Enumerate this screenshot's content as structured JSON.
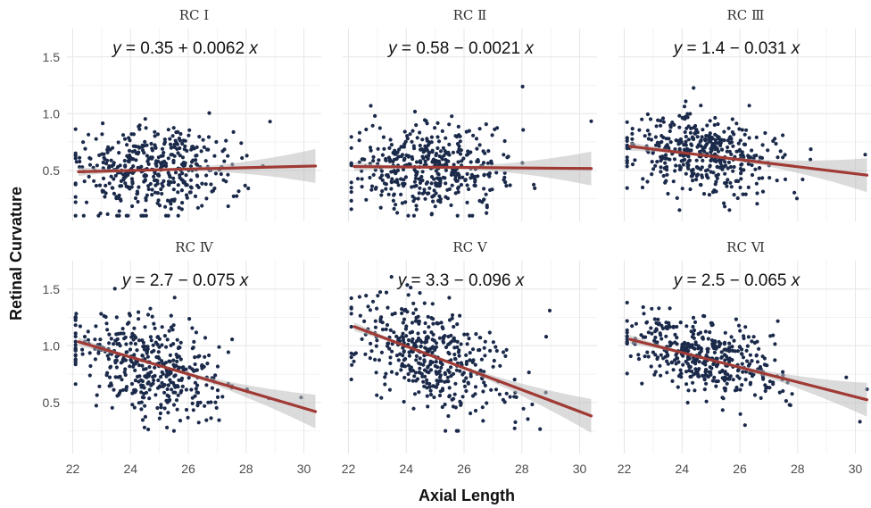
{
  "chart_data": {
    "type": "scatter",
    "xlabel": "Axial Length",
    "ylabel": "Retinal Curvature",
    "xlim": [
      21.8,
      30.6
    ],
    "ylim": [
      0.05,
      1.75
    ],
    "x_ticks": [
      22,
      24,
      26,
      28,
      30
    ],
    "y_ticks": [
      0.5,
      1.0,
      1.5
    ],
    "x_tick_labels": [
      "22",
      "24",
      "26",
      "28",
      "30"
    ],
    "y_tick_labels": [
      "0.5",
      "1.0",
      "1.5"
    ],
    "grid": true,
    "layout": "2x3 facets",
    "point_color": "#1b2a4a",
    "line_color": "#a03a35",
    "band_color": "#bdbdbd",
    "panels": [
      {
        "name": "RC Ⅰ",
        "equation": "y = 0.35 + 0.0062 x",
        "intercept": 0.35,
        "slope": 0.0062,
        "point_cloud": {
          "center_x": 24.8,
          "sd_x": 1.25,
          "center_y": 0.5,
          "sd_y": 0.2,
          "corr": 0.0,
          "y_range": [
            0.1,
            1.42
          ]
        }
      },
      {
        "name": "RC Ⅱ",
        "equation": "y = 0.58 − 0.0021 x",
        "intercept": 0.58,
        "slope": -0.0021,
        "point_cloud": {
          "center_x": 24.8,
          "sd_x": 1.25,
          "center_y": 0.53,
          "sd_y": 0.19,
          "corr": 0.0,
          "y_range": [
            0.1,
            1.3
          ]
        }
      },
      {
        "name": "RC Ⅲ",
        "equation": "y = 1.4 − 0.031 x",
        "intercept": 1.4,
        "slope": -0.031,
        "point_cloud": {
          "center_x": 24.8,
          "sd_x": 1.25,
          "center_y": 0.63,
          "sd_y": 0.18,
          "corr": -0.2,
          "y_range": [
            0.15,
            1.35
          ]
        }
      },
      {
        "name": "RC Ⅳ",
        "equation": "y = 2.7 − 0.075 x",
        "intercept": 2.7,
        "slope": -0.075,
        "point_cloud": {
          "center_x": 24.8,
          "sd_x": 1.25,
          "center_y": 0.82,
          "sd_y": 0.22,
          "corr": -0.35,
          "y_range": [
            0.25,
            1.7
          ]
        }
      },
      {
        "name": "RC Ⅴ",
        "equation": "y = 3.3 − 0.096 x",
        "intercept": 3.3,
        "slope": -0.096,
        "point_cloud": {
          "center_x": 24.8,
          "sd_x": 1.25,
          "center_y": 0.92,
          "sd_y": 0.25,
          "corr": -0.4,
          "y_range": [
            0.25,
            1.62
          ]
        }
      },
      {
        "name": "RC Ⅵ",
        "equation": "y = 2.5 − 0.065 x",
        "intercept": 2.5,
        "slope": -0.065,
        "point_cloud": {
          "center_x": 24.8,
          "sd_x": 1.25,
          "center_y": 0.9,
          "sd_y": 0.17,
          "corr": -0.4,
          "y_range": [
            0.3,
            1.38
          ]
        }
      }
    ]
  }
}
